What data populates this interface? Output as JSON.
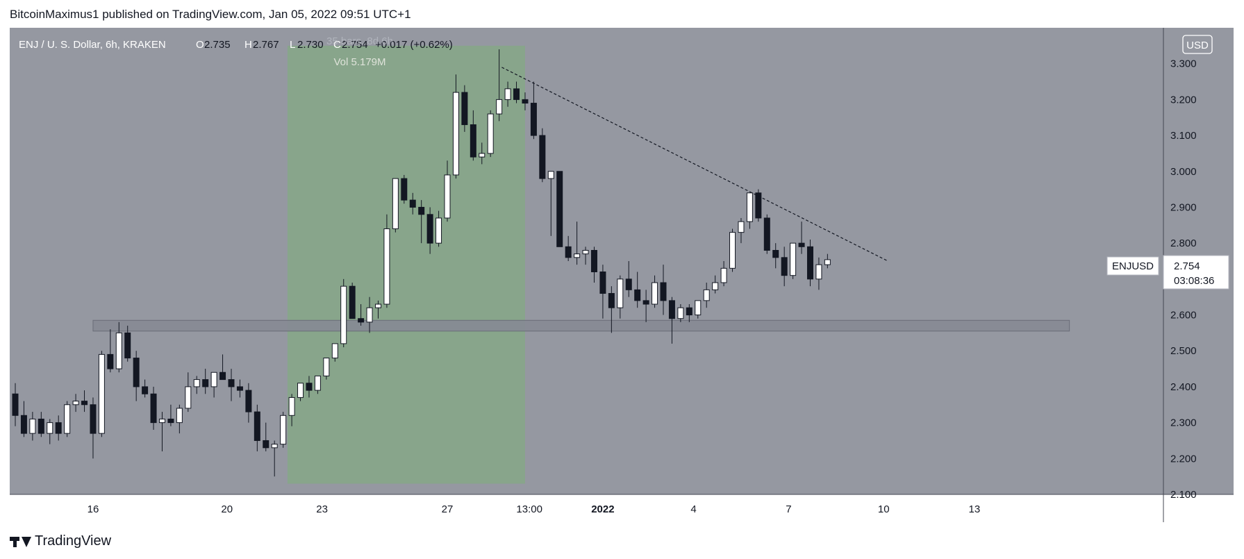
{
  "publisher_line": "BitcoinMaximus1 published on TradingView.com, Jan 05, 2022 09:51 UTC+1",
  "brand": "TradingView",
  "colors": {
    "background": "#9598a1",
    "plot_bg": "#9598a1",
    "highlight_zone": "#86a787",
    "support_zone": "#868993",
    "up_candle": "#ffffff",
    "down_candle": "#131722"
  },
  "header": {
    "symbol": "ENJ / U. S. Dollar, 6h, KRAKEN",
    "o_label": "O",
    "o_value": "2.735",
    "h_label": "H",
    "h_value": "2.767",
    "l_label": "L",
    "l_value": "2.730",
    "c_label": "C",
    "c_value": "2.754",
    "change": "+0.017 (+0.62%)"
  },
  "measure": {
    "bars_text": "35 bars, 8d 6h",
    "vol_text": "Vol 5.179M"
  },
  "price_label": {
    "symbol": "ENJUSD",
    "price": "2.754",
    "countdown": "03:08:36"
  },
  "currency_badge": "USD",
  "chart_data": {
    "type": "candlestick",
    "symbol": "ENJUSD",
    "interval": "6h",
    "exchange": "KRAKEN",
    "ylim": [
      2.1,
      3.4
    ],
    "y_ticks": [
      "3.300",
      "3.200",
      "3.100",
      "3.000",
      "2.900",
      "2.800",
      "2.600",
      "2.500",
      "2.400",
      "2.300",
      "2.200",
      "2.100"
    ],
    "x_ticks": [
      "16",
      "20",
      "23",
      "27",
      "13:00",
      "2022",
      "4",
      "7",
      "10",
      "13"
    ],
    "x_tick_bar_index": [
      9,
      24.5,
      35.5,
      50,
      59.5,
      68,
      78.5,
      89.5,
      100.5,
      111
    ],
    "bars_range": [
      0,
      127
    ],
    "candles": [
      [
        2.38,
        2.41,
        2.29,
        2.32
      ],
      [
        2.32,
        2.36,
        2.26,
        2.27
      ],
      [
        2.27,
        2.33,
        2.25,
        2.31
      ],
      [
        2.31,
        2.33,
        2.26,
        2.27
      ],
      [
        2.27,
        2.31,
        2.24,
        2.3
      ],
      [
        2.3,
        2.32,
        2.25,
        2.27
      ],
      [
        2.27,
        2.36,
        2.26,
        2.35
      ],
      [
        2.35,
        2.38,
        2.33,
        2.36
      ],
      [
        2.36,
        2.39,
        2.33,
        2.35
      ],
      [
        2.35,
        2.37,
        2.2,
        2.27
      ],
      [
        2.27,
        2.5,
        2.26,
        2.49
      ],
      [
        2.49,
        2.56,
        2.44,
        2.45
      ],
      [
        2.45,
        2.58,
        2.44,
        2.55
      ],
      [
        2.55,
        2.57,
        2.47,
        2.48
      ],
      [
        2.48,
        2.5,
        2.36,
        2.4
      ],
      [
        2.4,
        2.42,
        2.37,
        2.38
      ],
      [
        2.38,
        2.4,
        2.28,
        2.3
      ],
      [
        2.3,
        2.33,
        2.22,
        2.31
      ],
      [
        2.31,
        2.35,
        2.29,
        2.3
      ],
      [
        2.3,
        2.35,
        2.27,
        2.34
      ],
      [
        2.34,
        2.44,
        2.33,
        2.4
      ],
      [
        2.4,
        2.43,
        2.38,
        2.42
      ],
      [
        2.42,
        2.45,
        2.38,
        2.4
      ],
      [
        2.4,
        2.44,
        2.37,
        2.44
      ],
      [
        2.44,
        2.49,
        2.42,
        2.42
      ],
      [
        2.42,
        2.45,
        2.36,
        2.4
      ],
      [
        2.4,
        2.42,
        2.37,
        2.39
      ],
      [
        2.39,
        2.41,
        2.3,
        2.33
      ],
      [
        2.33,
        2.35,
        2.22,
        2.25
      ],
      [
        2.25,
        2.3,
        2.22,
        2.23
      ],
      [
        2.23,
        2.25,
        2.15,
        2.24
      ],
      [
        2.24,
        2.33,
        2.23,
        2.32
      ],
      [
        2.32,
        2.38,
        2.29,
        2.37
      ],
      [
        2.37,
        2.41,
        2.36,
        2.41
      ],
      [
        2.41,
        2.43,
        2.37,
        2.39
      ],
      [
        2.39,
        2.43,
        2.38,
        2.43
      ],
      [
        2.43,
        2.48,
        2.42,
        2.48
      ],
      [
        2.48,
        2.52,
        2.47,
        2.52
      ],
      [
        2.52,
        2.7,
        2.51,
        2.68
      ],
      [
        2.68,
        2.69,
        2.59,
        2.59
      ],
      [
        2.59,
        2.63,
        2.57,
        2.58
      ],
      [
        2.58,
        2.65,
        2.55,
        2.62
      ],
      [
        2.62,
        2.64,
        2.59,
        2.63
      ],
      [
        2.63,
        2.88,
        2.62,
        2.84
      ],
      [
        2.84,
        2.98,
        2.83,
        2.98
      ],
      [
        2.98,
        2.99,
        2.91,
        2.92
      ],
      [
        2.92,
        2.94,
        2.88,
        2.9
      ],
      [
        2.9,
        2.92,
        2.8,
        2.88
      ],
      [
        2.88,
        2.9,
        2.77,
        2.8
      ],
      [
        2.8,
        2.89,
        2.79,
        2.87
      ],
      [
        2.87,
        3.03,
        2.86,
        2.99
      ],
      [
        2.99,
        3.27,
        2.98,
        3.22
      ],
      [
        3.22,
        3.24,
        3.11,
        3.13
      ],
      [
        3.13,
        3.17,
        3.03,
        3.04
      ],
      [
        3.04,
        3.08,
        3.02,
        3.05
      ],
      [
        3.05,
        3.17,
        3.04,
        3.16
      ],
      [
        3.16,
        3.34,
        3.14,
        3.2
      ],
      [
        3.2,
        3.25,
        3.18,
        3.23
      ],
      [
        3.23,
        3.25,
        3.19,
        3.2
      ],
      [
        3.2,
        3.22,
        3.17,
        3.19
      ],
      [
        3.19,
        3.25,
        3.09,
        3.1
      ],
      [
        3.1,
        3.12,
        2.97,
        2.98
      ],
      [
        2.98,
        3.0,
        2.82,
        3.0
      ],
      [
        3.0,
        3.0,
        2.79,
        2.79
      ],
      [
        2.79,
        2.82,
        2.75,
        2.76
      ],
      [
        2.76,
        2.86,
        2.74,
        2.77
      ],
      [
        2.77,
        2.79,
        2.74,
        2.78
      ],
      [
        2.78,
        2.79,
        2.69,
        2.72
      ],
      [
        2.72,
        2.74,
        2.59,
        2.66
      ],
      [
        2.66,
        2.68,
        2.55,
        2.62
      ],
      [
        2.62,
        2.71,
        2.59,
        2.7
      ],
      [
        2.7,
        2.75,
        2.65,
        2.67
      ],
      [
        2.67,
        2.72,
        2.62,
        2.64
      ],
      [
        2.64,
        2.67,
        2.58,
        2.63
      ],
      [
        2.63,
        2.71,
        2.62,
        2.69
      ],
      [
        2.69,
        2.74,
        2.6,
        2.64
      ],
      [
        2.64,
        2.65,
        2.52,
        2.59
      ],
      [
        2.59,
        2.63,
        2.58,
        2.62
      ],
      [
        2.62,
        2.63,
        2.58,
        2.6
      ],
      [
        2.6,
        2.64,
        2.59,
        2.64
      ],
      [
        2.64,
        2.69,
        2.62,
        2.67
      ],
      [
        2.67,
        2.71,
        2.66,
        2.69
      ],
      [
        2.69,
        2.75,
        2.68,
        2.73
      ],
      [
        2.73,
        2.84,
        2.72,
        2.83
      ],
      [
        2.83,
        2.87,
        2.8,
        2.86
      ],
      [
        2.86,
        2.94,
        2.84,
        2.94
      ],
      [
        2.94,
        2.95,
        2.86,
        2.87
      ],
      [
        2.87,
        2.88,
        2.77,
        2.78
      ],
      [
        2.78,
        2.8,
        2.73,
        2.76
      ],
      [
        2.76,
        2.79,
        2.68,
        2.71
      ],
      [
        2.71,
        2.8,
        2.7,
        2.8
      ],
      [
        2.8,
        2.86,
        2.77,
        2.79
      ],
      [
        2.79,
        2.81,
        2.68,
        2.7
      ],
      [
        2.7,
        2.76,
        2.67,
        2.74
      ],
      [
        2.74,
        2.77,
        2.73,
        2.754
      ]
    ],
    "highlight_zone": {
      "from_bar": 31.5,
      "to_bar": 59,
      "y_from": 2.13,
      "y_to": 3.35
    },
    "support_zone": {
      "from_bar": 9,
      "to_bar": 122,
      "y_from": 2.555,
      "y_to": 2.585
    },
    "trendline": {
      "from": [
        56.3,
        3.29
      ],
      "to": [
        101,
        2.75
      ]
    },
    "current_price": 2.754
  }
}
